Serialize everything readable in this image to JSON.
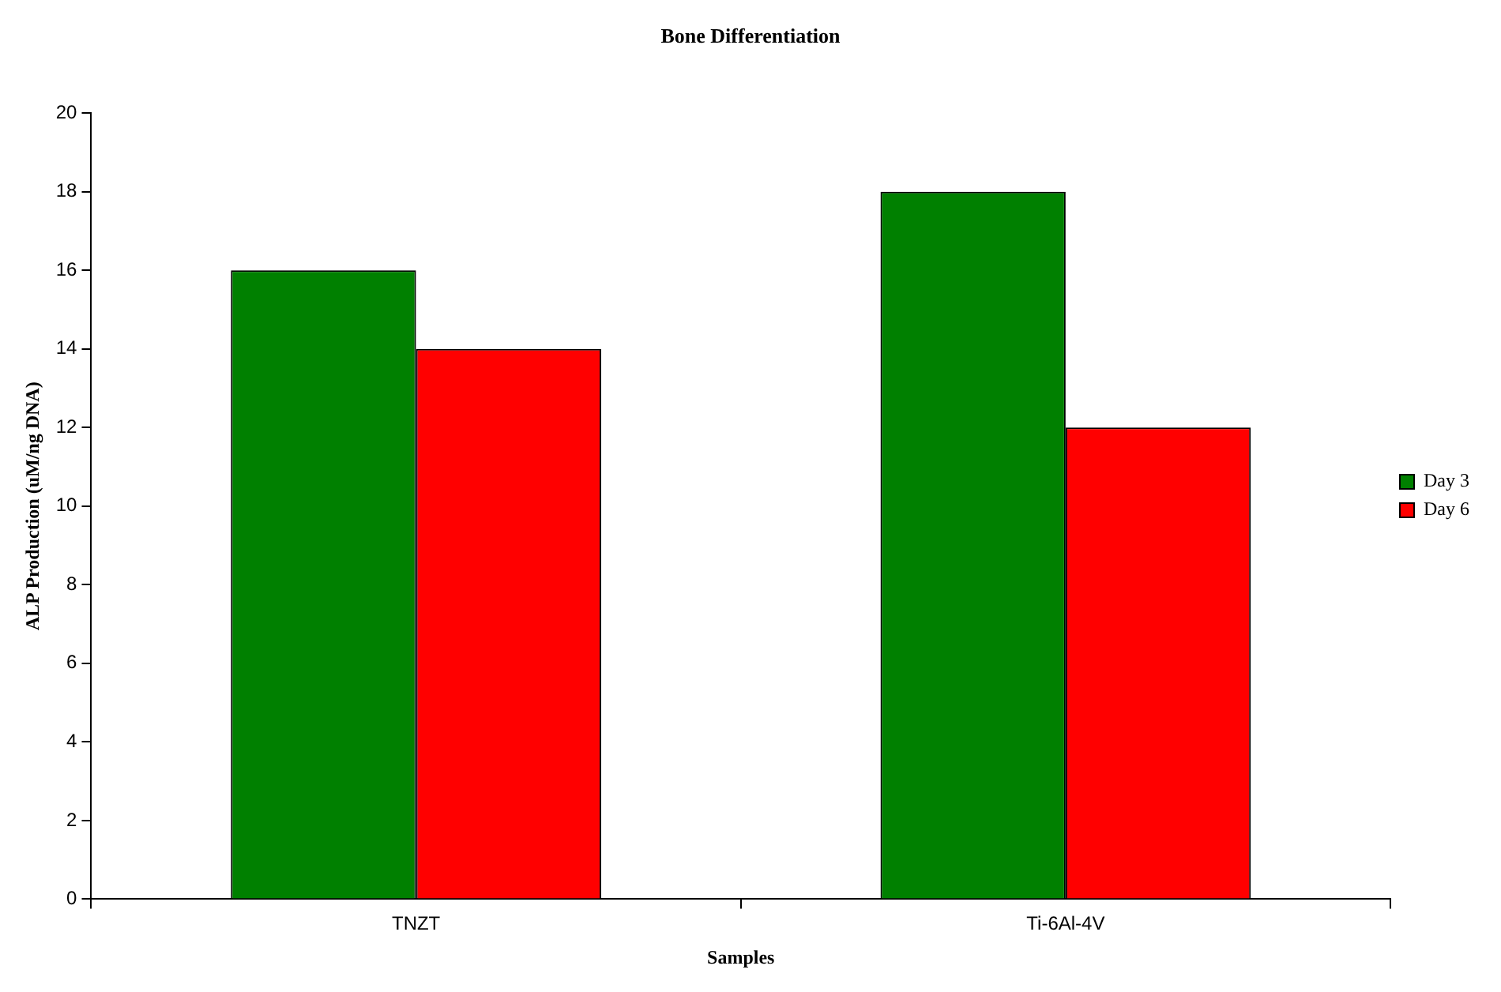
{
  "chart_data": {
    "type": "bar",
    "title": "Bone Differentiation",
    "xlabel": "Samples",
    "ylabel": "ALP Production (uM/ng DNA)",
    "categories": [
      "TNZT",
      "Ti-6Al-4V"
    ],
    "series": [
      {
        "name": "Day 3",
        "color": "#008000",
        "values": [
          16,
          18
        ]
      },
      {
        "name": "Day 6",
        "color": "#ff0000",
        "values": [
          14,
          12
        ]
      }
    ],
    "ylim": [
      0,
      20
    ],
    "yticks": [
      0,
      2,
      4,
      6,
      8,
      10,
      12,
      14,
      16,
      18,
      20
    ],
    "grid": false,
    "legend": "right"
  }
}
